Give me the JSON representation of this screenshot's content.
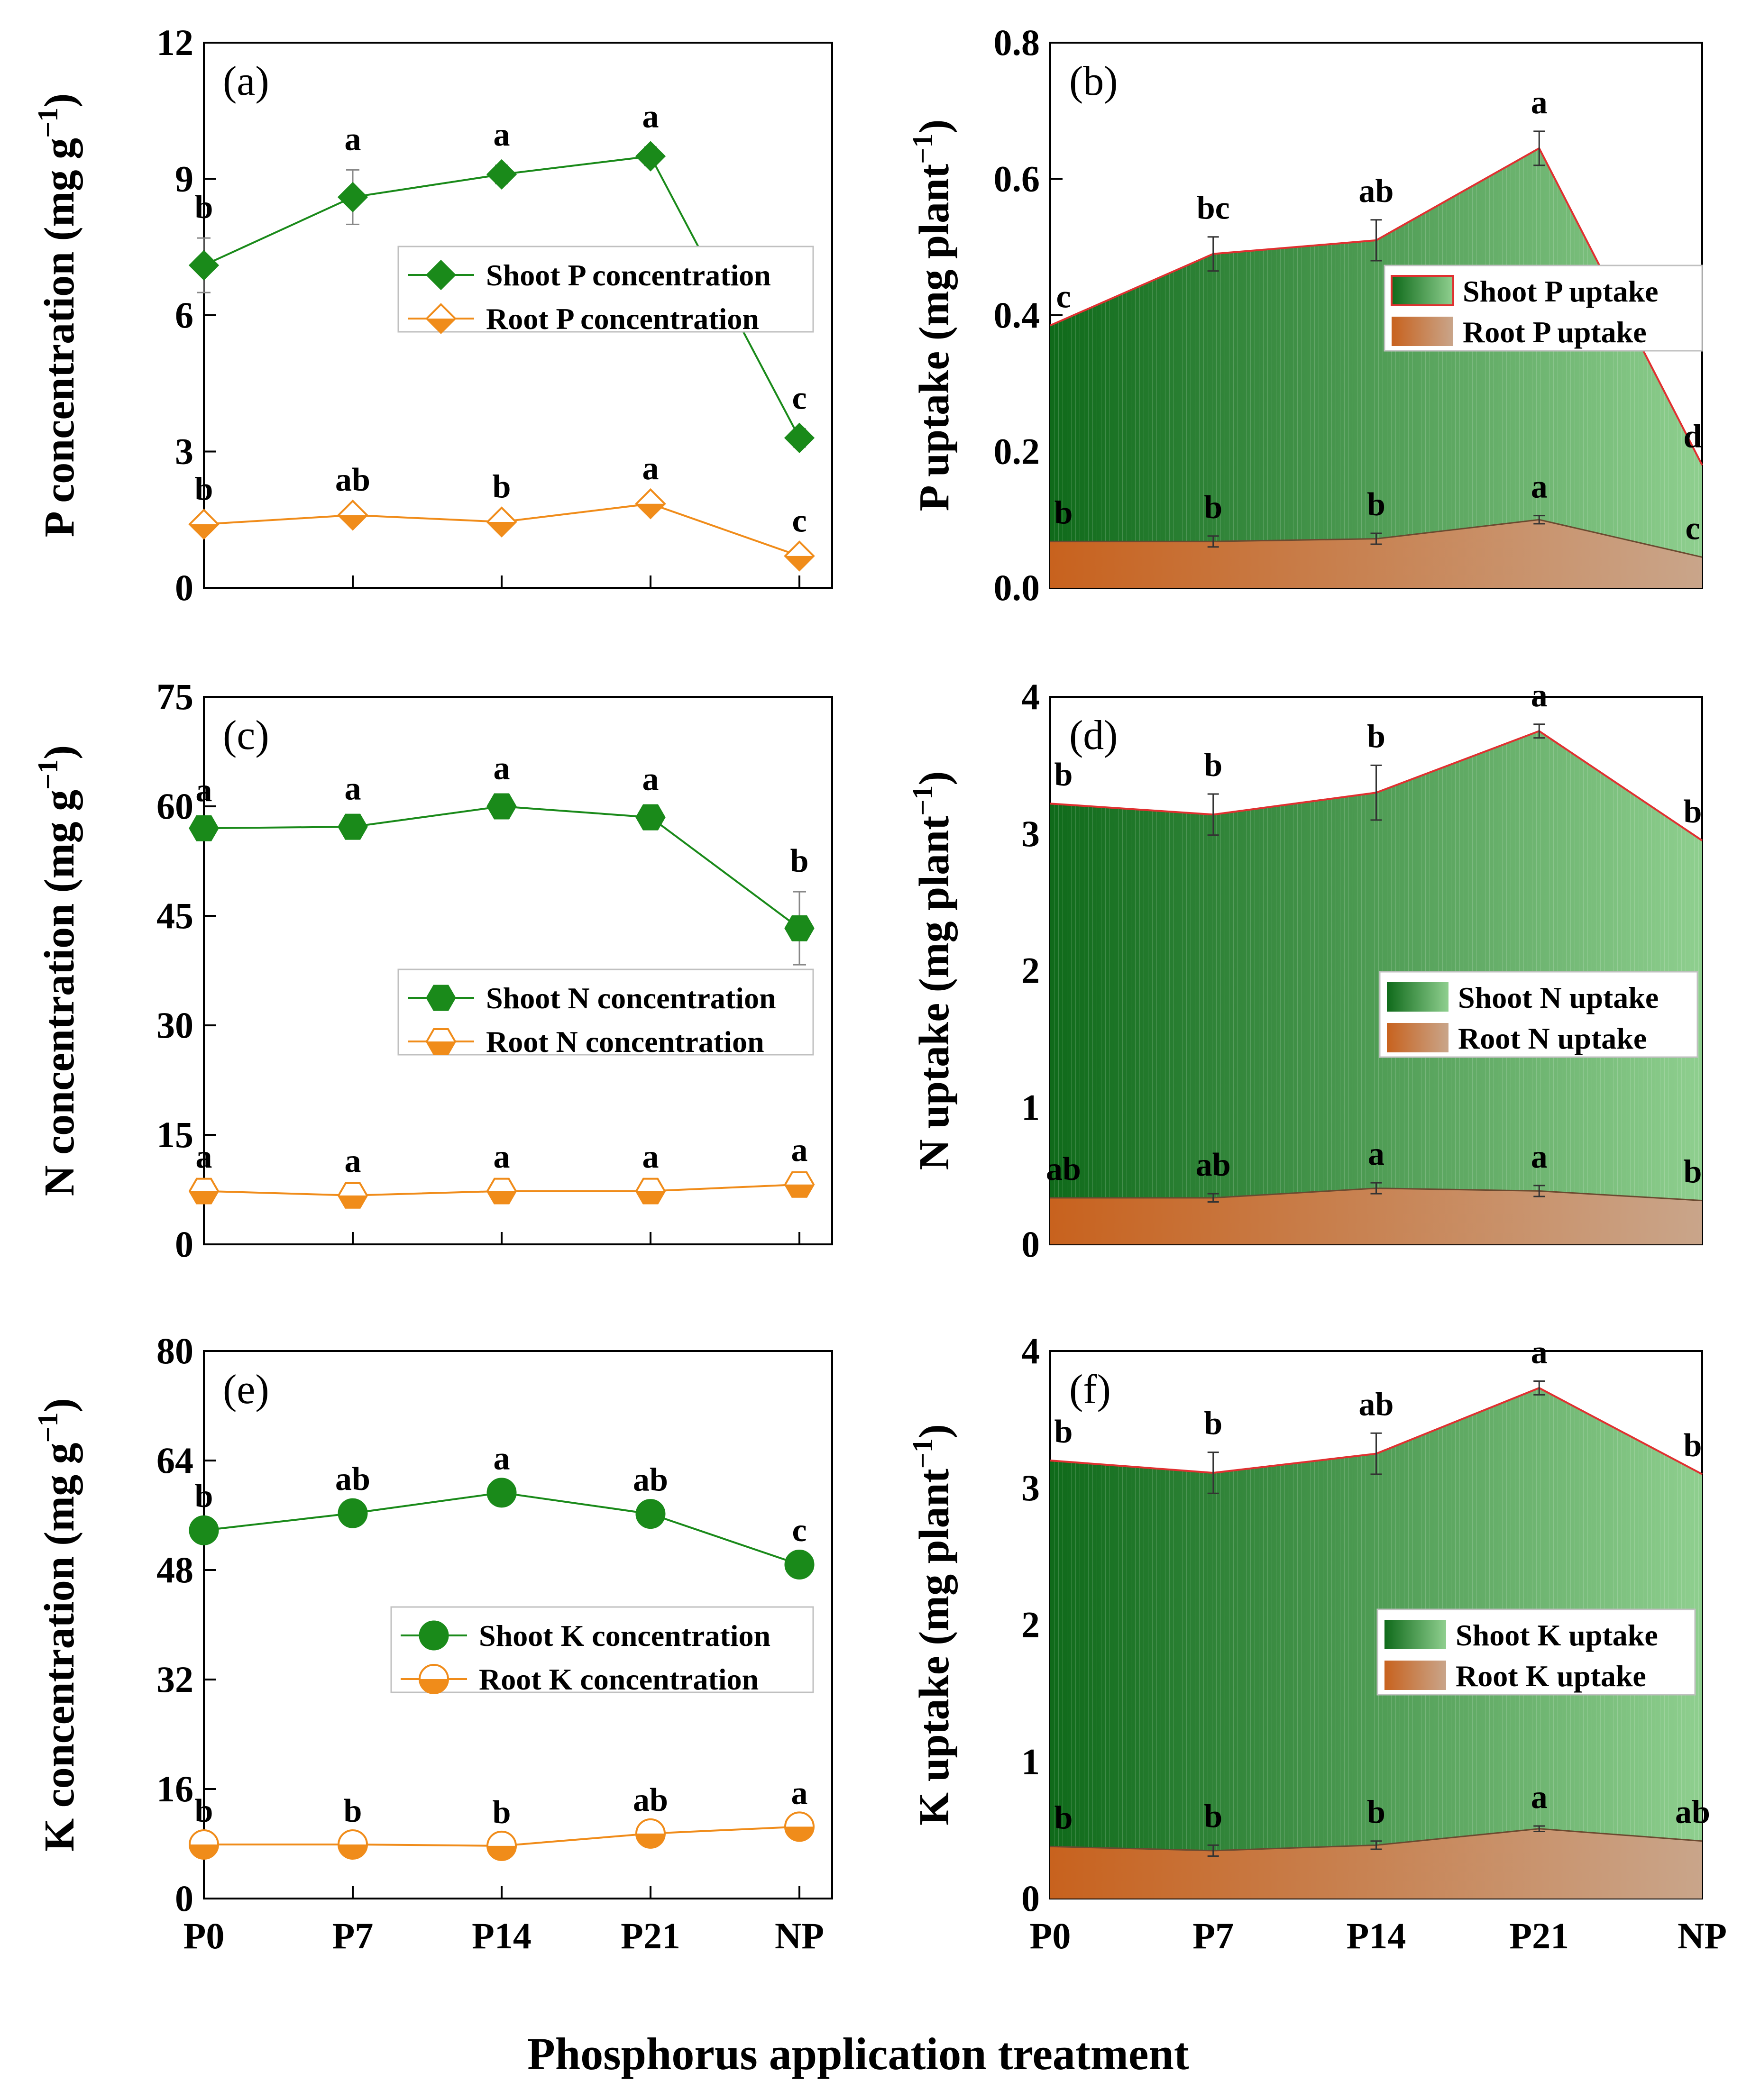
{
  "figure": {
    "x_caption": "Phosphorus application treatment",
    "categories": [
      "P0",
      "P7",
      "P14",
      "P21",
      "NP"
    ],
    "colors": {
      "shoot": "#1a8a1a",
      "root": "#f08c1a",
      "shoot_area_dark": "#0f6a1a",
      "shoot_area_light": "#8fcf8f",
      "root_area_dark": "#c8621e",
      "root_area_light": "#c9a58a",
      "uptake_line": "#e03030"
    }
  },
  "chart_data": [
    {
      "panel": "(a)",
      "type": "line",
      "marker": "diamond",
      "ylabel": "P concentration (mg g",
      "ylabel_sup": "−1",
      "ylabel_end": ")",
      "ylim": [
        0,
        12
      ],
      "yticks": [
        "0",
        "3",
        "6",
        "9",
        "12"
      ],
      "categories": [
        "P0",
        "P7",
        "P14",
        "P21",
        "NP"
      ],
      "series": [
        {
          "name": "Shoot P concentration",
          "values": [
            7.1,
            8.6,
            9.1,
            9.5,
            3.3
          ],
          "err": [
            0.6,
            0.6,
            0.2,
            0.2,
            0.2
          ],
          "letters": [
            "b",
            "a",
            "a",
            "a",
            "c"
          ]
        },
        {
          "name": "Root P concentration",
          "values": [
            1.4,
            1.6,
            1.45,
            1.85,
            0.7
          ],
          "err": [
            0.1,
            0.1,
            0.1,
            0.1,
            0.1
          ],
          "letters": [
            "b",
            "ab",
            "b",
            "a",
            "c"
          ]
        }
      ]
    },
    {
      "panel": "(b)",
      "type": "area",
      "ylabel": "P uptake (mg plant",
      "ylabel_sup": "−1",
      "ylabel_end": ")",
      "ylim": [
        0,
        0.8
      ],
      "yticks": [
        "0.0",
        "0.2",
        "0.4",
        "0.6",
        "0.8"
      ],
      "categories": [
        "P0",
        "P7",
        "P14",
        "P21",
        "NP"
      ],
      "series": [
        {
          "name": "Shoot P uptake",
          "values": [
            0.385,
            0.49,
            0.51,
            0.645,
            0.18
          ],
          "err": [
            0,
            0.025,
            0.03,
            0.025,
            0
          ],
          "letters": [
            "c",
            "bc",
            "ab",
            "a",
            "d"
          ]
        },
        {
          "name": "Root P uptake",
          "values": [
            0.068,
            0.068,
            0.072,
            0.1,
            0.045
          ],
          "err": [
            0,
            0.008,
            0.008,
            0.006,
            0
          ],
          "letters": [
            "b",
            "b",
            "b",
            "a",
            "c"
          ]
        }
      ]
    },
    {
      "panel": "(c)",
      "type": "line",
      "marker": "hexagon",
      "ylabel": "N concentration (mg g",
      "ylabel_sup": "−1",
      "ylabel_end": ")",
      "ylim": [
        0,
        75
      ],
      "yticks": [
        "0",
        "15",
        "30",
        "45",
        "60",
        "75"
      ],
      "categories": [
        "P0",
        "P7",
        "P14",
        "P21",
        "NP"
      ],
      "series": [
        {
          "name": "Shoot N concentration",
          "values": [
            57,
            57.2,
            60,
            58.5,
            43.3
          ],
          "err": [
            1,
            1,
            1,
            1,
            5
          ],
          "letters": [
            "a",
            "a",
            "a",
            "a",
            "b"
          ]
        },
        {
          "name": "Root N concentration",
          "values": [
            7.3,
            6.7,
            7.3,
            7.3,
            8.2
          ],
          "err": [
            0.5,
            0.5,
            0.5,
            0.5,
            0.5
          ],
          "letters": [
            "a",
            "a",
            "a",
            "a",
            "a"
          ]
        }
      ]
    },
    {
      "panel": "(d)",
      "type": "area",
      "ylabel": "N uptake (mg plant",
      "ylabel_sup": "−1",
      "ylabel_end": ")",
      "ylim": [
        0,
        4
      ],
      "yticks": [
        "0",
        "1",
        "2",
        "3",
        "4"
      ],
      "categories": [
        "P0",
        "P7",
        "P14",
        "P21",
        "NP"
      ],
      "series": [
        {
          "name": "Shoot N uptake",
          "values": [
            3.22,
            3.14,
            3.3,
            3.75,
            2.95
          ],
          "err": [
            0,
            0.15,
            0.2,
            0.05,
            0
          ],
          "letters": [
            "b",
            "b",
            "b",
            "a",
            "b"
          ]
        },
        {
          "name": "Root N uptake",
          "values": [
            0.34,
            0.34,
            0.41,
            0.39,
            0.32
          ],
          "err": [
            0,
            0.03,
            0.04,
            0.04,
            0
          ],
          "letters": [
            "ab",
            "ab",
            "a",
            "a",
            "b"
          ]
        }
      ]
    },
    {
      "panel": "(e)",
      "type": "line",
      "marker": "circle",
      "ylabel": "K concentration (mg g",
      "ylabel_sup": "−1",
      "ylabel_end": ")",
      "ylim": [
        0,
        80
      ],
      "yticks": [
        "0",
        "16",
        "32",
        "48",
        "64",
        "80"
      ],
      "categories": [
        "P0",
        "P7",
        "P14",
        "P21",
        "NP"
      ],
      "series": [
        {
          "name": "Shoot K concentration",
          "values": [
            53.8,
            56.3,
            59.3,
            56.2,
            48.8
          ],
          "err": [
            0.5,
            0.5,
            0.5,
            0.5,
            0.5
          ],
          "letters": [
            "b",
            "ab",
            "a",
            "ab",
            "c"
          ]
        },
        {
          "name": "Root K concentration",
          "values": [
            7.9,
            7.9,
            7.7,
            9.5,
            10.5
          ],
          "err": [
            0.4,
            0.4,
            0.4,
            0.4,
            0.4
          ],
          "letters": [
            "b",
            "b",
            "b",
            "ab",
            "a"
          ]
        }
      ]
    },
    {
      "panel": "(f)",
      "type": "area",
      "ylabel": "K uptake (mg plant",
      "ylabel_sup": "−1",
      "ylabel_end": ")",
      "ylim": [
        0,
        4
      ],
      "yticks": [
        "0",
        "1",
        "2",
        "3",
        "4"
      ],
      "categories": [
        "P0",
        "P7",
        "P14",
        "P21",
        "NP"
      ],
      "series": [
        {
          "name": "Shoot K uptake",
          "values": [
            3.2,
            3.11,
            3.25,
            3.73,
            3.1
          ],
          "err": [
            0,
            0.15,
            0.15,
            0.05,
            0
          ],
          "letters": [
            "b",
            "b",
            "ab",
            "a",
            "b"
          ]
        },
        {
          "name": "Root K uptake",
          "values": [
            0.38,
            0.35,
            0.39,
            0.51,
            0.42
          ],
          "err": [
            0,
            0.04,
            0.03,
            0.02,
            0
          ],
          "letters": [
            "b",
            "b",
            "b",
            "a",
            "ab"
          ]
        }
      ]
    }
  ]
}
